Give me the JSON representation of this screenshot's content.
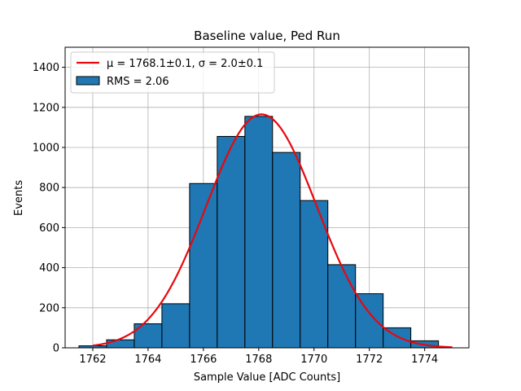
{
  "chart_data": {
    "type": "bar",
    "title": "Baseline value, Ped Run",
    "xlabel": "Sample Value [ADC Counts]",
    "ylabel": "Events",
    "xlim": [
      1761.0,
      1775.6
    ],
    "ylim": [
      0,
      1500
    ],
    "xticks": [
      1762,
      1764,
      1766,
      1768,
      1770,
      1772,
      1774
    ],
    "yticks": [
      0,
      200,
      400,
      600,
      800,
      1000,
      1200,
      1400
    ],
    "xtick_labels": [
      "1762",
      "1764",
      "1766",
      "1768",
      "1770",
      "1772",
      "1774"
    ],
    "ytick_labels": [
      "0",
      "200",
      "400",
      "600",
      "800",
      "1000",
      "1200",
      "1400"
    ],
    "grid": true,
    "legend_position": "upper-left",
    "bin_edges": [
      1761.5,
      1762.5,
      1763.5,
      1764.5,
      1765.5,
      1766.5,
      1767.5,
      1768.5,
      1769.5,
      1770.5,
      1771.5,
      1772.5,
      1773.5,
      1774.5
    ],
    "values": [
      10,
      40,
      120,
      220,
      820,
      1055,
      1155,
      975,
      735,
      415,
      270,
      100,
      35
    ],
    "bar_color": "#1f77b4",
    "fit": {
      "type": "gaussian",
      "amplitude": 1165,
      "mu": 1768.1,
      "sigma": 2.0,
      "x_range": [
        1762.0,
        1775.0
      ],
      "color": "#e8080d"
    },
    "legend": [
      {
        "label": "μ = 1768.1±0.1, σ = 2.0±0.1",
        "kind": "line",
        "color": "#e8080d"
      },
      {
        "label": "RMS = 2.06",
        "kind": "patch",
        "color": "#1f77b4"
      }
    ]
  }
}
